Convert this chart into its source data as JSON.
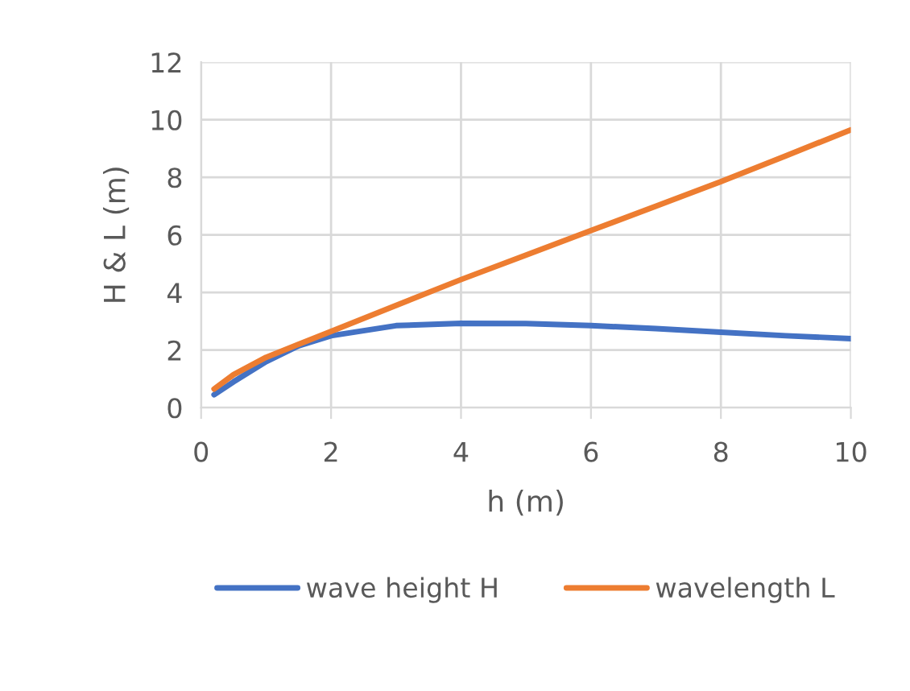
{
  "chart_data": {
    "type": "line",
    "xlabel": "h (m)",
    "ylabel": "H & L (m)",
    "x": [
      0.2,
      0.5,
      1,
      1.5,
      2,
      3,
      4,
      5,
      6,
      7,
      8,
      9,
      10
    ],
    "series": [
      {
        "name": "wave height H",
        "color": "#4472c4",
        "values": [
          0.45,
          0.9,
          1.6,
          2.15,
          2.5,
          2.85,
          2.93,
          2.92,
          2.85,
          2.75,
          2.62,
          2.5,
          2.4
        ]
      },
      {
        "name": "wavelength L",
        "color": "#ed7d31",
        "values": [
          0.65,
          1.15,
          1.75,
          2.2,
          2.65,
          3.55,
          4.45,
          5.3,
          6.15,
          7.0,
          7.85,
          8.75,
          9.65
        ]
      }
    ],
    "xlim": [
      0,
      10
    ],
    "ylim": [
      0,
      12
    ],
    "xticks": [
      0,
      2,
      4,
      6,
      8,
      10
    ],
    "yticks": [
      0,
      2,
      4,
      6,
      8,
      10,
      12
    ],
    "grid": true,
    "legend": "bottom",
    "marker": "none",
    "line_style": "solid"
  }
}
